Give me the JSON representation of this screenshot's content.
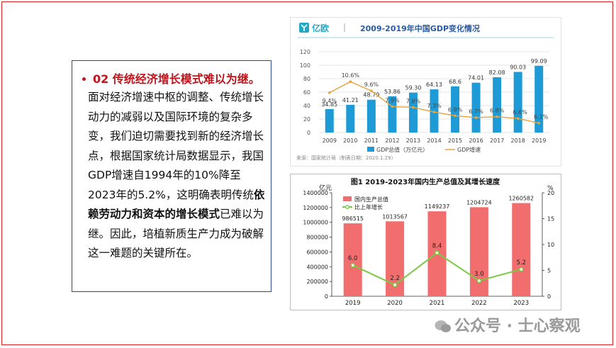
{
  "text_panel": {
    "bullet": "•",
    "heading": "02  传统经济增长模式难以为继。",
    "body_part1": "面对经济增速中枢的调整、传统增长动力的减弱以及国际环境的复杂多变，我们迫切需要找到新的经济增长点，根据国家统计局数据显示，我国GDP增速自1994年的10%降至2023年的5.2%，这明确表明传统",
    "body_bold": "依赖劳动力和资本的增长模式",
    "body_part2": "已难以为继。因此，培植新质生产力成为破解这一难题的关键所在。"
  },
  "watermark": "公众号 · 士心察观",
  "colors": {
    "accent": "#c0141c",
    "bar1": "#1e9bd7",
    "line1": "#e8a33a",
    "bar2": "#f26d6d",
    "line2": "#7ac943"
  },
  "chart_data": [
    {
      "type": "bar",
      "brand": "亿欧",
      "title": "2009-2019年中国GDP变化情况",
      "categories": [
        "2009",
        "2010",
        "2011",
        "2012",
        "2013",
        "2014",
        "2015",
        "2016",
        "2017",
        "2018",
        "2019"
      ],
      "series": [
        {
          "name": "GDP总值（万亿元）",
          "type": "bar",
          "values": [
            34.85,
            41.21,
            48.79,
            53.86,
            59.3,
            64.13,
            68.6,
            74.01,
            82.08,
            90.03,
            99.09
          ]
        },
        {
          "name": "GDP增速",
          "type": "line",
          "values": [
            9.4,
            10.6,
            9.6,
            7.9,
            7.8,
            7.3,
            6.9,
            6.7,
            6.8,
            6.6,
            6.1
          ],
          "labels": [
            "9.4%",
            "10.6%",
            "9.6%",
            "7.9%",
            "7.8%",
            "7.3%",
            "6.9%",
            "6.7%",
            "6.8%",
            "6.6%",
            "6.1%"
          ]
        }
      ],
      "yticks": [
        "0",
        "20",
        "40",
        "60",
        "80",
        "100",
        "120"
      ],
      "ylim": [
        0,
        120
      ],
      "source": "来源：国家统计局（制表日期：2020.1.29）",
      "legend_position": "bottom-center",
      "grid": true
    },
    {
      "type": "bar",
      "title": "图1   2019-2023年国内生产总值及其增长速度",
      "ylabel_left": "亿元",
      "ylabel_right": "%",
      "categories": [
        "2019",
        "2020",
        "2021",
        "2022",
        "2023"
      ],
      "series": [
        {
          "name": "国内生产总值",
          "type": "bar",
          "values": [
            986515,
            1013567,
            1149237,
            1204724,
            1260582
          ]
        },
        {
          "name": "比上年增长",
          "type": "line",
          "values": [
            6.0,
            2.2,
            8.4,
            3.0,
            5.2
          ],
          "labels": [
            "6.0",
            "2.2",
            "8.4",
            "3.0",
            "5.2"
          ]
        }
      ],
      "yticks_left": [
        "0",
        "200000",
        "400000",
        "600000",
        "800000",
        "1000000",
        "1200000",
        "1400000"
      ],
      "yticks_right": [
        "0",
        "5",
        "10",
        "15",
        "20"
      ],
      "ylim_left": [
        0,
        1400000
      ],
      "ylim_right": [
        0,
        20
      ],
      "legend_position": "top-left"
    }
  ]
}
